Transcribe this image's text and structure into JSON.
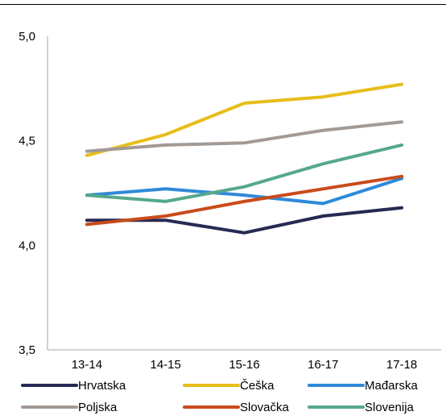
{
  "chart_data": {
    "type": "line",
    "title": "",
    "xlabel": "",
    "ylabel": "",
    "categories": [
      "13-14",
      "14-15",
      "15-16",
      "16-17",
      "17-18"
    ],
    "y_tick_labels": [
      "5,0",
      "4,5",
      "4,0",
      "3,5"
    ],
    "y_ticks": [
      5.0,
      4.5,
      4.0,
      3.5
    ],
    "ylim": [
      3.5,
      5.0
    ],
    "grid": false,
    "legend_position": "bottom",
    "series": [
      {
        "name": "Hrvatska",
        "color": "#262a53",
        "values": [
          4.12,
          4.12,
          4.06,
          4.14,
          4.18
        ]
      },
      {
        "name": "Češka",
        "color": "#e8bd1a",
        "values": [
          4.43,
          4.53,
          4.68,
          4.71,
          4.77
        ]
      },
      {
        "name": "Mađarska",
        "color": "#2f8ad8",
        "values": [
          4.24,
          4.27,
          4.24,
          4.2,
          4.32
        ]
      },
      {
        "name": "Poljska",
        "color": "#a29a95",
        "values": [
          4.45,
          4.48,
          4.49,
          4.55,
          4.59
        ]
      },
      {
        "name": "Slovačka",
        "color": "#c94b1b",
        "values": [
          4.1,
          4.14,
          4.21,
          4.27,
          4.33
        ]
      },
      {
        "name": "Slovenija",
        "color": "#56a88c",
        "values": [
          4.24,
          4.21,
          4.28,
          4.39,
          4.48
        ]
      }
    ]
  }
}
